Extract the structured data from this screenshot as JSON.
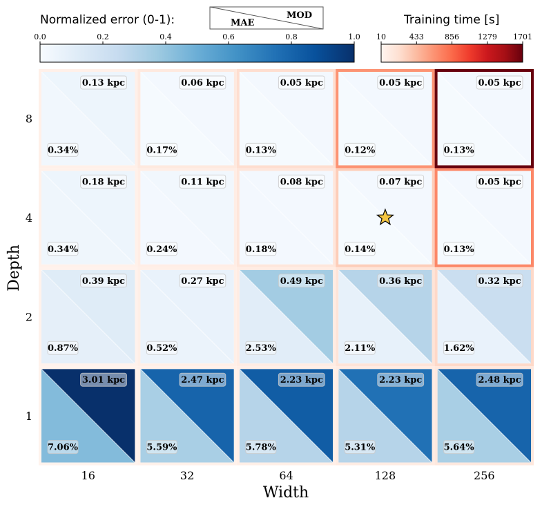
{
  "chart_data": {
    "type": "heatmap",
    "xlabel": "Width",
    "ylabel": "Depth",
    "x_categories": [
      "16",
      "32",
      "64",
      "128",
      "256"
    ],
    "y_categories": [
      "8",
      "4",
      "2",
      "1"
    ],
    "cells": [
      [
        {
          "mae": "0.13 kpc",
          "mod": "0.34%",
          "mae_norm": 0.03,
          "mod_norm": 0.05,
          "time": 60
        },
        {
          "mae": "0.06 kpc",
          "mod": "0.17%",
          "mae_norm": 0.01,
          "mod_norm": 0.02,
          "time": 130
        },
        {
          "mae": "0.05 kpc",
          "mod": "0.13%",
          "mae_norm": 0.01,
          "mod_norm": 0.02,
          "time": 230
        },
        {
          "mae": "0.05 kpc",
          "mod": "0.12%",
          "mae_norm": 0.01,
          "mod_norm": 0.02,
          "time": 640
        },
        {
          "mae": "0.05 kpc",
          "mod": "0.13%",
          "mae_norm": 0.01,
          "mod_norm": 0.02,
          "time": 1701
        }
      ],
      [
        {
          "mae": "0.18 kpc",
          "mod": "0.34%",
          "mae_norm": 0.04,
          "mod_norm": 0.05,
          "time": 50
        },
        {
          "mae": "0.11 kpc",
          "mod": "0.24%",
          "mae_norm": 0.02,
          "mod_norm": 0.03,
          "time": 90
        },
        {
          "mae": "0.08 kpc",
          "mod": "0.18%",
          "mae_norm": 0.02,
          "mod_norm": 0.02,
          "time": 160
        },
        {
          "mae": "0.07 kpc",
          "mod": "0.14%",
          "mae_norm": 0.01,
          "mod_norm": 0.02,
          "time": 330
        },
        {
          "mae": "0.05 kpc",
          "mod": "0.13%",
          "mae_norm": 0.01,
          "mod_norm": 0.02,
          "time": 700
        }
      ],
      [
        {
          "mae": "0.39 kpc",
          "mod": "0.87%",
          "mae_norm": 0.09,
          "mod_norm": 0.12,
          "time": 40
        },
        {
          "mae": "0.27 kpc",
          "mod": "0.52%",
          "mae_norm": 0.06,
          "mod_norm": 0.07,
          "time": 70
        },
        {
          "mae": "0.49 kpc",
          "mod": "2.53%",
          "mae_norm": 0.11,
          "mod_norm": 0.36,
          "time": 100
        },
        {
          "mae": "0.36 kpc",
          "mod": "2.11%",
          "mae_norm": 0.08,
          "mod_norm": 0.3,
          "time": 180
        },
        {
          "mae": "0.32 kpc",
          "mod": "1.62%",
          "mae_norm": 0.07,
          "mod_norm": 0.23,
          "time": 260
        }
      ],
      [
        {
          "mae": "3.01 kpc",
          "mod": "7.06%",
          "mae_norm": 0.44,
          "mod_norm": 1.0,
          "time": 30
        },
        {
          "mae": "2.47 kpc",
          "mod": "5.59%",
          "mae_norm": 0.34,
          "mod_norm": 0.8,
          "time": 50
        },
        {
          "mae": "2.23 kpc",
          "mod": "5.78%",
          "mae_norm": 0.3,
          "mod_norm": 0.83,
          "time": 70
        },
        {
          "mae": "2.23 kpc",
          "mod": "5.31%",
          "mae_norm": 0.3,
          "mod_norm": 0.75,
          "time": 100
        },
        {
          "mae": "2.48 kpc",
          "mod": "5.64%",
          "mae_norm": 0.34,
          "mod_norm": 0.8,
          "time": 140
        }
      ]
    ],
    "best_cell": {
      "row": 1,
      "col": 3
    },
    "error_colorbar": {
      "title": "Normalized error (0-1):",
      "ticks": [
        "0.0",
        "0.2",
        "0.4",
        "0.6",
        "0.8",
        "1.0"
      ],
      "range": [
        0,
        1
      ]
    },
    "time_colorbar": {
      "title": "Training time [s]",
      "ticks": [
        "10",
        "433",
        "856",
        "1279",
        "1701"
      ],
      "range": [
        10,
        1701
      ]
    },
    "legend": {
      "mod_label": "MOD",
      "mae_label": "MAE"
    }
  },
  "colors": {
    "blue_low": "#f7fbff",
    "blue_high": "#08306b",
    "red_low": "#fff5f0",
    "red_high": "#67000d",
    "star": "#f4c542"
  }
}
